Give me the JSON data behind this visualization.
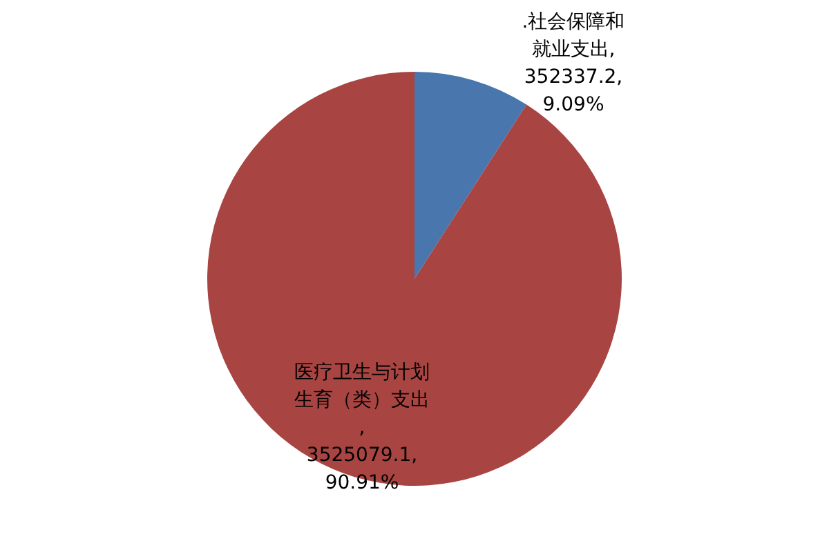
{
  "chart_data": {
    "type": "pie",
    "categories": [
      ".社会保障和就业支出",
      "医疗卫生与计划生育（类）支出"
    ],
    "values": [
      352337.2,
      3525079.1
    ],
    "colors": [
      "#4a76ae",
      "#a84441"
    ],
    "value_labels": [
      ", 352337.2, 9.09%",
      ", 3525079.1, 90.91%"
    ],
    "legend": false
  }
}
